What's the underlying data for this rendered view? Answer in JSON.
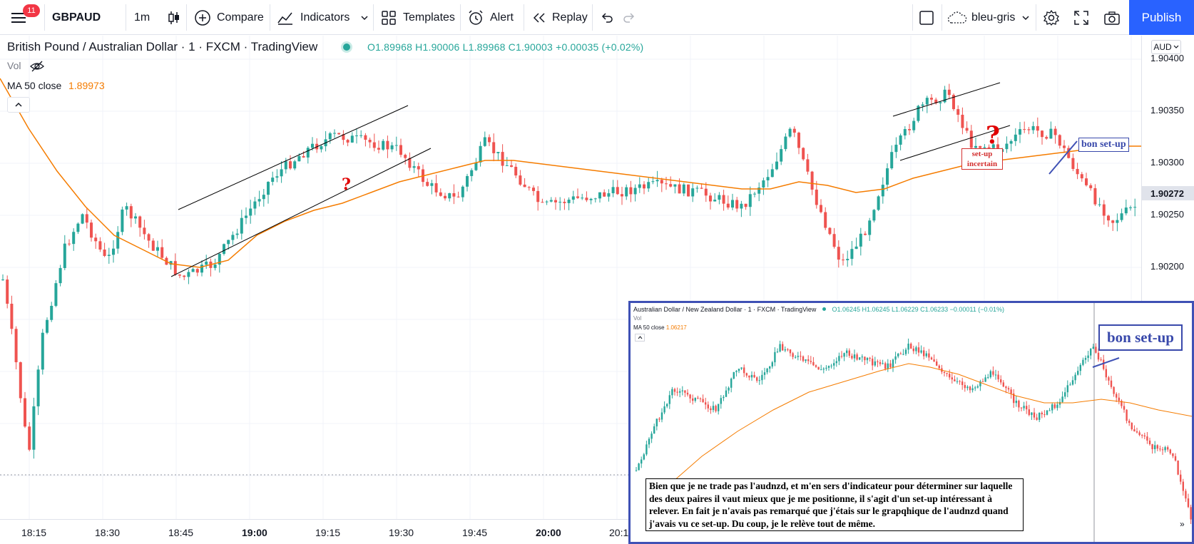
{
  "toolbar": {
    "notification_count": "11",
    "symbol": "GBPAUD",
    "interval": "1m",
    "compare_label": "Compare",
    "indicators_label": "Indicators",
    "templates_label": "Templates",
    "alert_label": "Alert",
    "replay_label": "Replay",
    "layout_name": "bleu-gris",
    "publish_label": "Publish"
  },
  "legend": {
    "title": "British Pound / Australian Dollar · 1 · FXCM · TradingView",
    "ohlc": "O1.89968 H1.90006 L1.89968 C1.90003 +0.00035 (+0.02%)",
    "vol_label": "Vol",
    "ma_label": "MA 50 close",
    "ma_value": "1.89973"
  },
  "price_axis": {
    "currency": "AUD",
    "ticks": [
      "1.90400",
      "1.90350",
      "1.90300",
      "1.90250",
      "1.90200"
    ],
    "last_price": "1.90272"
  },
  "time_axis": {
    "ticks": [
      "18:15",
      "18:30",
      "18:45",
      "19:00",
      "19:15",
      "19:30",
      "19:45",
      "20:00",
      "20:1"
    ]
  },
  "annotations": {
    "question_mark": "?",
    "setup_incertain_line1": "set-up",
    "setup_incertain_line2": "incertain",
    "bon_setup": "bon set-up"
  },
  "inset": {
    "title": "Australian Dollar / New Zealand Dollar · 1 · FXCM · TradingView",
    "ohlc": "O1.06245 H1.06245 L1.06229 C1.06233 −0.00011 (−0.01%)",
    "vol_label": "Vol",
    "ma_label": "MA 50 close",
    "ma_value": "1.06217",
    "bon_setup": "bon set-up",
    "note": "Bien que je ne trade pas l'audnzd, et m'en sers d'indicateur pour déterminer sur laquelle des deux paires il vaut mieux que je me positionne,  il  s'agit d'un set-up intéressant à relever. En fait je n'avais pas remarqué  que j'étais sur le grapqhique de l'audnzd quand j'avais vu ce set-up. Du coup, je le relève tout de même."
  },
  "colors": {
    "up_candle": "#26a69a",
    "down_candle": "#ef5350",
    "ma_line": "#f57c00",
    "accent": "#2962ff",
    "annotation_blue": "#3949ab",
    "annotation_red": "#e00000"
  }
}
